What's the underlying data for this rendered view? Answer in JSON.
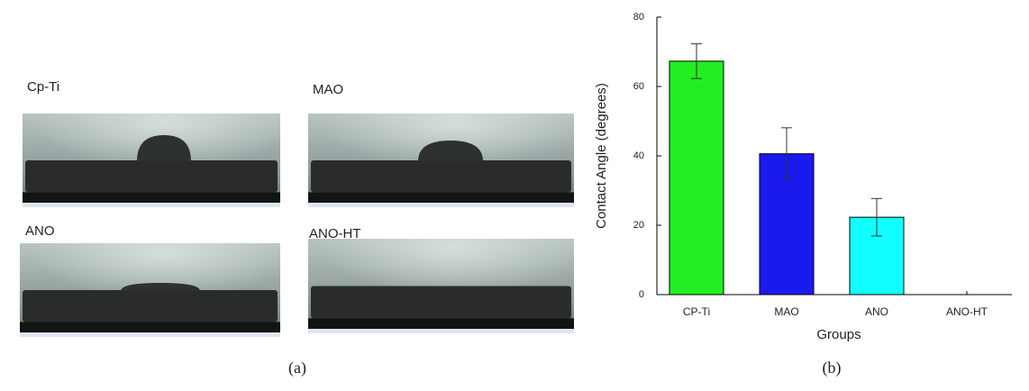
{
  "panel_a": {
    "images": [
      {
        "label": "Cp-Ti"
      },
      {
        "label": "MAO"
      },
      {
        "label": "ANO"
      },
      {
        "label": "ANO-HT"
      }
    ],
    "caption": "(a)"
  },
  "chart_data": {
    "type": "bar",
    "xlabel": "Groups",
    "ylabel": "Contact Angle (degrees)",
    "categories": [
      "CP-Ti",
      "MAO",
      "ANO",
      "ANO-HT"
    ],
    "values": [
      67.3,
      40.6,
      22.3,
      0
    ],
    "errors": [
      5,
      7.5,
      5.4,
      null
    ],
    "colors": [
      "#22ee22",
      "#1a1aee",
      "#11ffff",
      "#cccccc"
    ],
    "ylim": [
      0,
      80
    ],
    "yticks": [
      0,
      20,
      40,
      60,
      80
    ]
  },
  "panel_b": {
    "caption": "(b)"
  }
}
